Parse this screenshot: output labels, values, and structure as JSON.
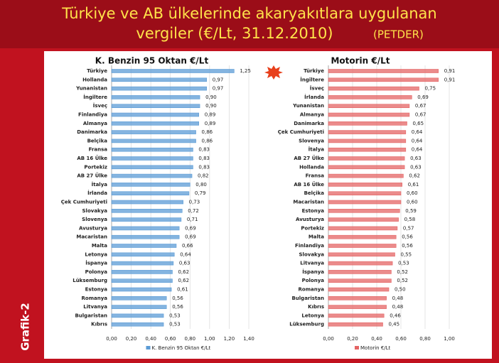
{
  "title": "Türkiye ve AB ülkelerinde akaryakıtlara uygulanan",
  "subtitle": "vergiler (€/Lt, 31.12.2010)",
  "source": "(PETDER)",
  "side_label": "Grafik-2",
  "chart_data": [
    {
      "type": "bar",
      "orientation": "horizontal",
      "title": "K. Benzin 95 Oktan €/Lt",
      "categories": [
        "Türkiye",
        "Hollanda",
        "Yunanistan",
        "İngiltere",
        "İsveç",
        "Finlandiya",
        "Almanya",
        "Danimarka",
        "Belçika",
        "Fransa",
        "AB 16 Ülke",
        "Portekiz",
        "AB 27 Ülke",
        "İtalya",
        "İrlanda",
        "Çek Cumhuriyeti",
        "Slovakya",
        "Slovenya",
        "Avusturya",
        "Macaristan",
        "Malta",
        "Letonya",
        "İspanya",
        "Polonya",
        "Lüksemburg",
        "Estonya",
        "Romanya",
        "Litvanya",
        "Bulgaristan",
        "Kıbrıs"
      ],
      "series": [
        {
          "name": "K. Benzin 95 Oktan €/Lt",
          "color": "#5b9bd5",
          "values": [
            1.25,
            0.97,
            0.97,
            0.9,
            0.9,
            0.89,
            0.89,
            0.86,
            0.86,
            0.83,
            0.83,
            0.83,
            0.82,
            0.8,
            0.79,
            0.73,
            0.72,
            0.71,
            0.69,
            0.69,
            0.66,
            0.64,
            0.63,
            0.62,
            0.62,
            0.61,
            0.56,
            0.56,
            0.53,
            0.53
          ],
          "value_labels": [
            "1,25",
            "0,97",
            "0,97",
            "0,90",
            "0,90",
            "0,89",
            "0,89",
            "0,86",
            "0,86",
            "0,83",
            "0,83",
            "0,83",
            "0,82",
            "0,80",
            "0,79",
            "0,73",
            "0,72",
            "0,71",
            "0,69",
            "0,69",
            "0,66",
            "0,64",
            "0,63",
            "0,62",
            "0,62",
            "0,61",
            "0,56",
            "0,56",
            "0,53",
            "0,53"
          ]
        }
      ],
      "xlim": [
        0,
        1.4
      ],
      "xticks": [
        {
          "value": 0,
          "label": "0,00"
        },
        {
          "value": 0.2,
          "label": "0,20"
        },
        {
          "value": 0.4,
          "label": "0,40"
        },
        {
          "value": 0.6,
          "label": "0,60"
        },
        {
          "value": 0.8,
          "label": "0,80"
        },
        {
          "value": 1.0,
          "label": "1,00"
        },
        {
          "value": 1.2,
          "label": "1,20"
        },
        {
          "value": 1.4,
          "label": "1,40"
        }
      ],
      "grid": true
    },
    {
      "type": "bar",
      "orientation": "horizontal",
      "title": "Motorin €/Lt",
      "categories": [
        "Türkiye",
        "İngiltere",
        "İsveç",
        "İrlanda",
        "Yunanistan",
        "Almanya",
        "Danimarka",
        "Çek Cumhuriyeti",
        "Slovenya",
        "İtalya",
        "AB 27 Ülke",
        "Hollanda",
        "Fransa",
        "AB 16 Ülke",
        "Belçika",
        "Macaristan",
        "Estonya",
        "Avusturya",
        "Portekiz",
        "Malta",
        "Finlandiya",
        "Slovakya",
        "Litvanya",
        "İspanya",
        "Polonya",
        "Romanya",
        "Bulgaristan",
        "Kıbrıs",
        "Letonya",
        "Lüksemburg"
      ],
      "series": [
        {
          "name": "Motorin €/Lt",
          "color": "#e46464",
          "values": [
            0.91,
            0.91,
            0.75,
            0.69,
            0.67,
            0.67,
            0.65,
            0.64,
            0.64,
            0.64,
            0.63,
            0.63,
            0.62,
            0.61,
            0.6,
            0.6,
            0.59,
            0.58,
            0.57,
            0.56,
            0.56,
            0.55,
            0.53,
            0.52,
            0.52,
            0.5,
            0.48,
            0.48,
            0.46,
            0.45
          ],
          "value_labels": [
            "0,91",
            "0,91",
            "0,75",
            "0,69",
            "0,67",
            "0,67",
            "0,65",
            "0,64",
            "0,64",
            "0,64",
            "0,63",
            "0,63",
            "0,62",
            "0,61",
            "0,60",
            "0,60",
            "0,59",
            "0,58",
            "0,57",
            "0,56",
            "0,56",
            "0,55",
            "0,53",
            "0,52",
            "0,52",
            "0,50",
            "0,48",
            "0,48",
            "0,46",
            "0,45"
          ]
        }
      ],
      "xlim": [
        0,
        1.0
      ],
      "xticks": [
        {
          "value": 0,
          "label": "0,00"
        },
        {
          "value": 0.2,
          "label": "0,20"
        },
        {
          "value": 0.4,
          "label": "0,40"
        },
        {
          "value": 0.6,
          "label": "0,60"
        },
        {
          "value": 0.8,
          "label": "0,80"
        },
        {
          "value": 1.0,
          "label": "1,00"
        }
      ],
      "grid": true
    }
  ]
}
